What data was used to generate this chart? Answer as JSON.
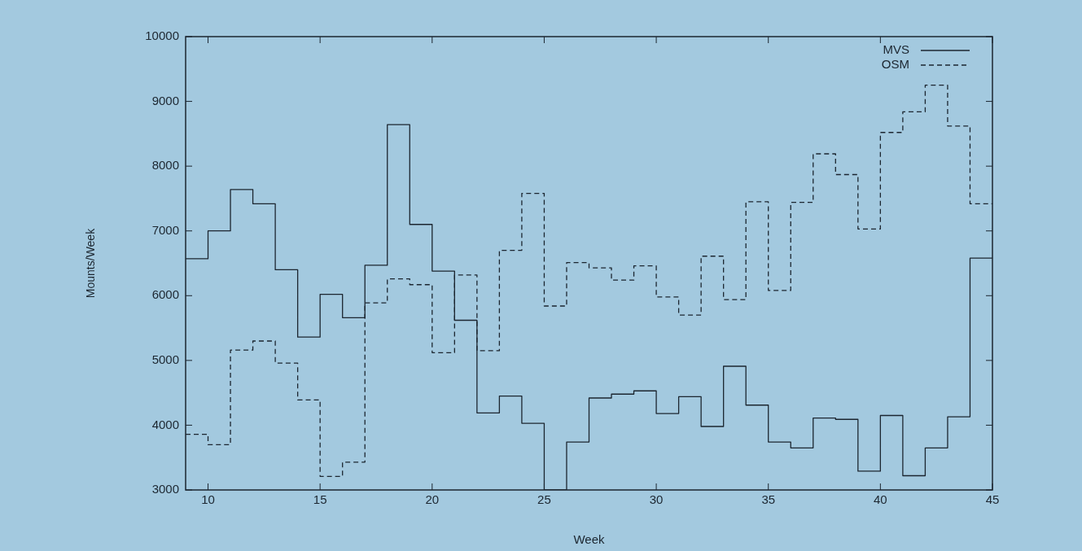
{
  "chart_data": {
    "type": "step",
    "xlabel": "Week",
    "ylabel": "Mounts/Week",
    "x": [
      9,
      10,
      11,
      12,
      13,
      14,
      15,
      16,
      17,
      18,
      19,
      20,
      21,
      22,
      23,
      24,
      25,
      26,
      27,
      28,
      29,
      30,
      31,
      32,
      33,
      34,
      35,
      36,
      37,
      38,
      39,
      40,
      41,
      42,
      43,
      44,
      45
    ],
    "series": [
      {
        "name": "MVS",
        "color": "#1c2630",
        "line_style": "solid",
        "values": [
          6570,
          7000,
          7640,
          7420,
          6400,
          5360,
          6020,
          5660,
          6470,
          8640,
          7100,
          6380,
          5620,
          4190,
          4450,
          4030,
          3000,
          3740,
          4420,
          4480,
          4530,
          4180,
          4440,
          3980,
          4910,
          4310,
          3740,
          3650,
          4110,
          4090,
          3290,
          4150,
          3220,
          3650,
          4130,
          6580,
          6580
        ]
      },
      {
        "name": "OSM",
        "color": "#1c2630",
        "line_style": "dashed",
        "values": [
          3860,
          3700,
          5160,
          5300,
          4960,
          4390,
          3210,
          3430,
          5890,
          6260,
          6170,
          5120,
          6320,
          5150,
          6700,
          7580,
          5840,
          6510,
          6430,
          6240,
          6460,
          5980,
          5700,
          6610,
          5940,
          7450,
          6080,
          7440,
          8190,
          7870,
          7030,
          8520,
          8840,
          9250,
          8620,
          7420,
          7420
        ]
      }
    ],
    "xlim": [
      9,
      45
    ],
    "xticks": [
      10,
      15,
      20,
      25,
      30,
      35,
      40,
      45
    ],
    "ylim": [
      3000,
      10000
    ],
    "yticks": [
      3000,
      4000,
      5000,
      6000,
      7000,
      8000,
      9000,
      10000
    ],
    "grid": false,
    "legend": "top right",
    "marker": "none"
  }
}
